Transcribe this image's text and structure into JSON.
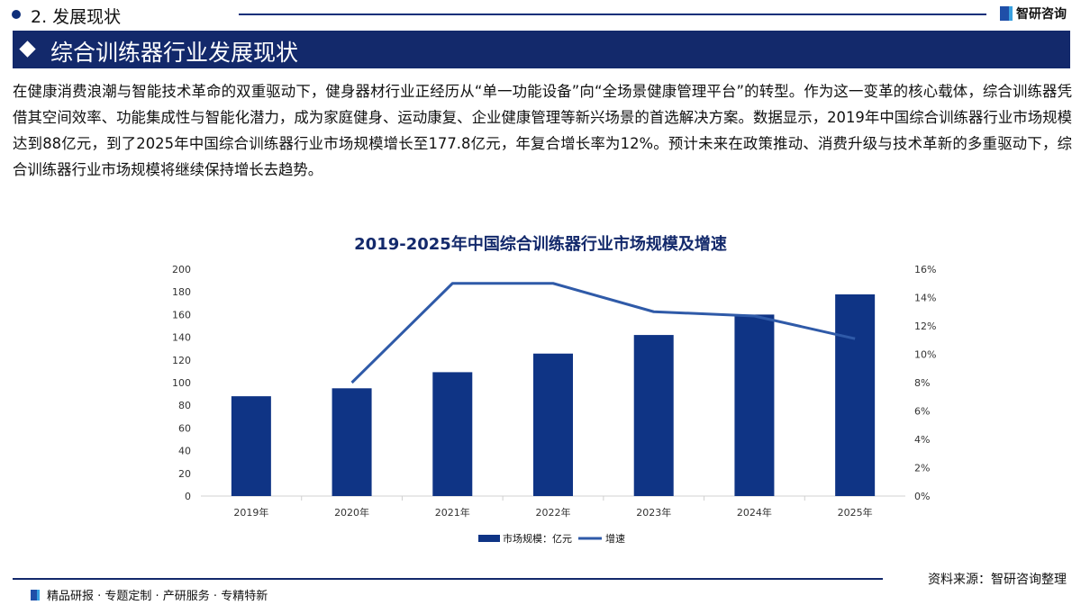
{
  "header": {
    "section": "2. 发展现状",
    "brand": "智研咨询"
  },
  "banner": {
    "title": "综合训练器行业发展现状"
  },
  "paragraph": "在健康消费浪潮与智能技术革命的双重驱动下，健身器材行业正经历从“单一功能设备”向“全场景健康管理平台”的转型。作为这一变革的核心载体，综合训练器凭借其空间效率、功能集成性与智能化潜力，成为家庭健身、运动康复、企业健康管理等新兴场景的首选解决方案。数据显示，2019年中国综合训练器行业市场规模达到88亿元，到了2025年中国综合训练器行业市场规模增长至177.8亿元，年复合增长率为12%。预计未来在政策推动、消费升级与技术革新的多重驱动下，综合训练器行业市场规模将继续保持增长去趋势。",
  "chart_data": {
    "type": "bar+line",
    "title": "2019-2025年中国综合训练器行业市场规模及增速",
    "categories": [
      "2019年",
      "2020年",
      "2021年",
      "2022年",
      "2023年",
      "2024年",
      "2025年"
    ],
    "series": [
      {
        "name": "市场规模：亿元",
        "type": "bar",
        "axis": "left",
        "values": [
          88,
          95,
          109.2,
          125.6,
          142,
          160,
          177.8
        ],
        "color": "#0f3485"
      },
      {
        "name": "增速",
        "type": "line",
        "axis": "right",
        "values": [
          null,
          8,
          15,
          15,
          13,
          12.7,
          11.1
        ],
        "color": "#2f5aa8"
      }
    ],
    "ylim_left": [
      0,
      200
    ],
    "yticks_left": [
      "0",
      "20",
      "40",
      "60",
      "80",
      "100",
      "120",
      "140",
      "160",
      "180",
      "200"
    ],
    "ylim_right": [
      0,
      16
    ],
    "yticks_right": [
      "0%",
      "2%",
      "4%",
      "6%",
      "8%",
      "10%",
      "12%",
      "14%",
      "16%"
    ],
    "grid": false,
    "legend": "bottom"
  },
  "footer": {
    "source": "资料来源：智研咨询整理",
    "slogan": "精品研报 · 专题定制 · 产研服务 · 专精特新"
  }
}
